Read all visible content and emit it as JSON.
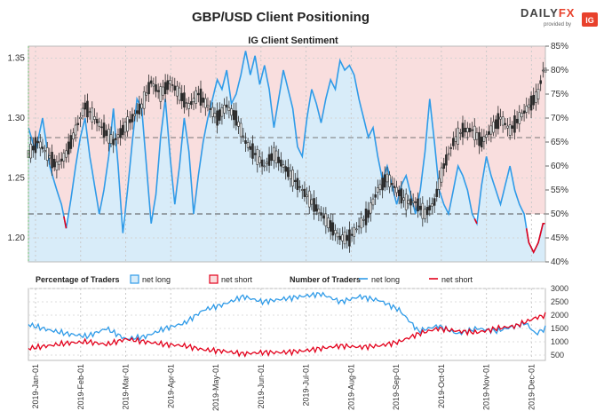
{
  "title": "GBP/USD Client Positioning",
  "subtitle": "IG Client Sentiment",
  "brand": {
    "name_part1": "DAILY",
    "name_part2": "FX",
    "provided_by": "provided by",
    "ig_badge": "IG"
  },
  "legend": {
    "pct_title": "Percentage of Traders",
    "pct_long": "net long",
    "pct_short": "net short",
    "num_title": "Number of Traders",
    "num_long": "net long",
    "num_short": "net short"
  },
  "colors": {
    "net_long": "#2f9be8",
    "net_short": "#e3001b",
    "long_fill": "#d8ecf9",
    "short_fill": "#f9dcdc",
    "price": "#2b2b2b"
  },
  "chart_data": [
    {
      "type": "line",
      "title": "IG Client Sentiment",
      "series": [
        {
          "name": "GBP/USD price",
          "kind": "candlestick"
        },
        {
          "name": "net long",
          "kind": "percentage",
          "axis": "right"
        }
      ],
      "ylim_price": [
        1.18,
        1.36
      ],
      "price_ticks": [
        "1.20",
        "1.25",
        "1.30",
        "1.35"
      ],
      "ylim_pct": [
        40,
        85
      ],
      "pct_ticks": [
        "40%",
        "45%",
        "50%",
        "55%",
        "60%",
        "65%",
        "70%",
        "75%",
        "80%",
        "85%"
      ],
      "reference_lines_pct": [
        50,
        65
      ],
      "price_keypoints": [
        [
          0,
          1.27
        ],
        [
          4,
          1.28
        ],
        [
          8,
          1.27
        ],
        [
          12,
          1.26
        ],
        [
          16,
          1.27
        ],
        [
          20,
          1.29
        ],
        [
          24,
          1.31
        ],
        [
          28,
          1.3
        ],
        [
          32,
          1.29
        ],
        [
          36,
          1.28
        ],
        [
          40,
          1.29
        ],
        [
          44,
          1.3
        ],
        [
          48,
          1.31
        ],
        [
          52,
          1.33
        ],
        [
          56,
          1.32
        ],
        [
          60,
          1.33
        ],
        [
          64,
          1.32
        ],
        [
          68,
          1.31
        ],
        [
          72,
          1.32
        ],
        [
          76,
          1.31
        ],
        [
          80,
          1.3
        ],
        [
          84,
          1.31
        ],
        [
          88,
          1.3
        ],
        [
          92,
          1.28
        ],
        [
          96,
          1.27
        ],
        [
          100,
          1.26
        ],
        [
          104,
          1.27
        ],
        [
          108,
          1.26
        ],
        [
          112,
          1.25
        ],
        [
          116,
          1.24
        ],
        [
          120,
          1.23
        ],
        [
          124,
          1.22
        ],
        [
          128,
          1.21
        ],
        [
          132,
          1.2
        ],
        [
          136,
          1.2
        ],
        [
          140,
          1.21
        ],
        [
          144,
          1.22
        ],
        [
          148,
          1.24
        ],
        [
          152,
          1.25
        ],
        [
          156,
          1.24
        ],
        [
          160,
          1.23
        ],
        [
          164,
          1.23
        ],
        [
          168,
          1.22
        ],
        [
          172,
          1.23
        ],
        [
          176,
          1.26
        ],
        [
          180,
          1.28
        ],
        [
          184,
          1.29
        ],
        [
          188,
          1.29
        ],
        [
          192,
          1.28
        ],
        [
          196,
          1.29
        ],
        [
          200,
          1.3
        ],
        [
          204,
          1.29
        ],
        [
          208,
          1.3
        ],
        [
          212,
          1.31
        ],
        [
          216,
          1.32
        ],
        [
          218,
          1.34
        ]
      ],
      "pct_long_keypoints": [
        [
          0,
          68
        ],
        [
          3,
          63
        ],
        [
          6,
          70
        ],
        [
          9,
          60
        ],
        [
          12,
          55
        ],
        [
          14,
          52
        ],
        [
          16,
          47
        ],
        [
          18,
          53
        ],
        [
          20,
          60
        ],
        [
          22,
          66
        ],
        [
          24,
          70
        ],
        [
          26,
          62
        ],
        [
          28,
          56
        ],
        [
          30,
          50
        ],
        [
          32,
          55
        ],
        [
          34,
          62
        ],
        [
          36,
          72
        ],
        [
          38,
          60
        ],
        [
          40,
          46
        ],
        [
          42,
          55
        ],
        [
          44,
          65
        ],
        [
          46,
          74
        ],
        [
          48,
          72
        ],
        [
          50,
          60
        ],
        [
          52,
          48
        ],
        [
          54,
          54
        ],
        [
          56,
          66
        ],
        [
          58,
          74
        ],
        [
          60,
          62
        ],
        [
          62,
          52
        ],
        [
          64,
          60
        ],
        [
          66,
          70
        ],
        [
          68,
          63
        ],
        [
          70,
          50
        ],
        [
          72,
          58
        ],
        [
          74,
          65
        ],
        [
          76,
          70
        ],
        [
          78,
          74
        ],
        [
          80,
          78
        ],
        [
          82,
          76
        ],
        [
          84,
          80
        ],
        [
          86,
          73
        ],
        [
          88,
          75
        ],
        [
          90,
          79
        ],
        [
          92,
          84
        ],
        [
          94,
          79
        ],
        [
          96,
          83
        ],
        [
          98,
          77
        ],
        [
          100,
          81
        ],
        [
          102,
          76
        ],
        [
          104,
          68
        ],
        [
          106,
          74
        ],
        [
          108,
          80
        ],
        [
          110,
          76
        ],
        [
          112,
          72
        ],
        [
          114,
          64
        ],
        [
          116,
          62
        ],
        [
          118,
          70
        ],
        [
          120,
          76
        ],
        [
          122,
          73
        ],
        [
          124,
          69
        ],
        [
          126,
          74
        ],
        [
          128,
          78
        ],
        [
          130,
          76
        ],
        [
          132,
          82
        ],
        [
          134,
          80
        ],
        [
          136,
          81
        ],
        [
          138,
          79
        ],
        [
          140,
          74
        ],
        [
          142,
          70
        ],
        [
          144,
          66
        ],
        [
          146,
          68
        ],
        [
          148,
          62
        ],
        [
          150,
          57
        ],
        [
          152,
          60
        ],
        [
          154,
          56
        ],
        [
          156,
          52
        ],
        [
          158,
          56
        ],
        [
          160,
          58
        ],
        [
          162,
          54
        ],
        [
          164,
          50
        ],
        [
          166,
          55
        ],
        [
          168,
          63
        ],
        [
          170,
          74
        ],
        [
          172,
          65
        ],
        [
          174,
          55
        ],
        [
          176,
          52
        ],
        [
          178,
          50
        ],
        [
          180,
          55
        ],
        [
          182,
          60
        ],
        [
          184,
          58
        ],
        [
          186,
          55
        ],
        [
          188,
          50
        ],
        [
          190,
          48
        ],
        [
          192,
          56
        ],
        [
          194,
          62
        ],
        [
          196,
          58
        ],
        [
          198,
          55
        ],
        [
          200,
          52
        ],
        [
          202,
          56
        ],
        [
          204,
          60
        ],
        [
          206,
          55
        ],
        [
          208,
          52
        ],
        [
          210,
          50
        ],
        [
          212,
          44
        ],
        [
          214,
          42
        ],
        [
          216,
          44
        ],
        [
          218,
          48
        ]
      ],
      "x_ticks": [
        "2019-Jan-01",
        "2019-Feb-01",
        "2019-Mar-01",
        "2019-Apr-01",
        "2019-May-01",
        "2019-Jun-01",
        "2019-Jul-01",
        "2019-Aug-01",
        "2019-Sep-01",
        "2019-Oct-01",
        "2019-Nov-01",
        "2019-Dec-01"
      ]
    },
    {
      "type": "line",
      "title": "Number of Traders",
      "ylim": [
        300,
        3000
      ],
      "y_ticks": [
        "500",
        "1000",
        "1500",
        "2000",
        "2500",
        "3000"
      ],
      "series": [
        {
          "name": "net long",
          "keypoints": [
            [
              0,
              1650
            ],
            [
              10,
              1450
            ],
            [
              20,
              1300
            ],
            [
              30,
              1200
            ],
            [
              40,
              1500
            ],
            [
              50,
              1100
            ],
            [
              60,
              1200
            ],
            [
              70,
              1500
            ],
            [
              80,
              1700
            ],
            [
              90,
              2200
            ],
            [
              100,
              2400
            ],
            [
              110,
              2700
            ],
            [
              120,
              2500
            ],
            [
              130,
              2600
            ],
            [
              140,
              2700
            ],
            [
              150,
              2800
            ],
            [
              160,
              2500
            ],
            [
              170,
              2700
            ],
            [
              180,
              2550
            ],
            [
              190,
              2200
            ],
            [
              200,
              1400
            ],
            [
              210,
              1600
            ],
            [
              220,
              1300
            ],
            [
              230,
              1500
            ],
            [
              240,
              1400
            ],
            [
              250,
              1600
            ],
            [
              255,
              1700
            ],
            [
              260,
              1300
            ],
            [
              265,
              1500
            ]
          ]
        },
        {
          "name": "net short",
          "keypoints": [
            [
              0,
              750
            ],
            [
              10,
              850
            ],
            [
              20,
              950
            ],
            [
              30,
              1000
            ],
            [
              40,
              900
            ],
            [
              50,
              1100
            ],
            [
              60,
              1000
            ],
            [
              70,
              900
            ],
            [
              80,
              850
            ],
            [
              90,
              700
            ],
            [
              100,
              650
            ],
            [
              110,
              550
            ],
            [
              120,
              600
            ],
            [
              130,
              600
            ],
            [
              140,
              650
            ],
            [
              150,
              750
            ],
            [
              160,
              850
            ],
            [
              170,
              800
            ],
            [
              180,
              850
            ],
            [
              190,
              1000
            ],
            [
              200,
              1300
            ],
            [
              210,
              1500
            ],
            [
              220,
              1400
            ],
            [
              230,
              1350
            ],
            [
              240,
              1500
            ],
            [
              250,
              1600
            ],
            [
              255,
              1750
            ],
            [
              260,
              1900
            ],
            [
              265,
              2000
            ]
          ]
        }
      ]
    }
  ]
}
